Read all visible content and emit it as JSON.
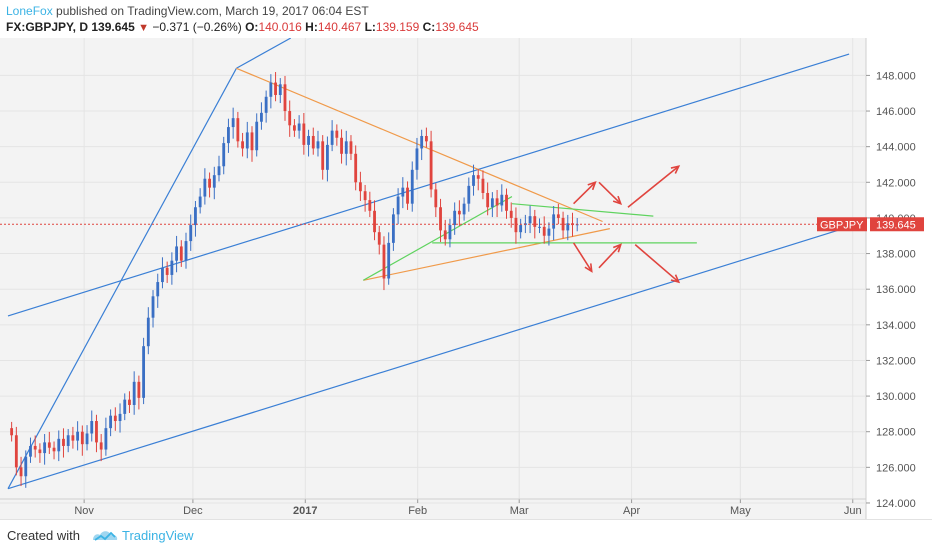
{
  "header": {
    "author": "LoneFox",
    "published": " published on TradingView.com, March 19, 2017 06:04 EST"
  },
  "ohlc": {
    "symbol": "FX:GBPJPY, D",
    "last": "139.645",
    "change": "−0.371 (−0.26%)",
    "o_label": "O:",
    "o": "140.016",
    "h_label": "H:",
    "h": "140.467",
    "l_label": "L:",
    "l": "139.159",
    "c_label": "C:",
    "c": "139.645"
  },
  "footer": {
    "created": "Created with",
    "brand": "TradingView"
  },
  "colors": {
    "up": "#3a6fc4",
    "down": "#e0443e",
    "channel": "#3a7fd5",
    "orange": "#f09a4a",
    "green": "#5fd35f",
    "arrows": "#e0443e",
    "price_line": "#e0443e",
    "plot_bg": "#f3f3f3"
  },
  "chart_data": {
    "type": "candlestick",
    "symbol": "GBPJPY",
    "last_price": 139.645,
    "price_label_text": "GBPJPY",
    "price_label_value": "139.645",
    "y_ticks": [
      "124.000",
      "126.000",
      "128.000",
      "130.000",
      "132.000",
      "134.000",
      "136.000",
      "138.000",
      "140.000",
      "142.000",
      "144.000",
      "146.000",
      "148.000"
    ],
    "x_ticks": [
      "Nov",
      "Dec",
      "2017",
      "Feb",
      "Mar",
      "Apr",
      "May",
      "Jun"
    ],
    "ylim": [
      123.1,
      150.1
    ],
    "x_range": [
      "2016-10-11",
      "2017-06-03"
    ],
    "candles_close": [
      127.8,
      126.0,
      125.5,
      126.6,
      127.2,
      127.0,
      126.8,
      127.4,
      127.1,
      126.9,
      127.6,
      127.2,
      127.8,
      127.5,
      128.0,
      127.3,
      127.9,
      128.6,
      127.4,
      127.0,
      128.2,
      128.9,
      128.6,
      129.0,
      129.8,
      129.5,
      130.8,
      129.9,
      132.8,
      134.4,
      135.6,
      136.4,
      137.2,
      136.8,
      137.6,
      138.4,
      137.6,
      138.7,
      139.6,
      140.6,
      141.2,
      142.2,
      141.7,
      142.4,
      142.9,
      144.2,
      145.1,
      145.6,
      144.3,
      143.9,
      144.8,
      143.8,
      145.4,
      145.9,
      146.8,
      147.6,
      146.9,
      147.5,
      146.0,
      145.2,
      144.9,
      145.3,
      144.1,
      144.6,
      143.9,
      144.3,
      142.7,
      144.1,
      144.9,
      144.5,
      143.6,
      144.3,
      143.6,
      142.0,
      141.5,
      141.0,
      140.4,
      139.2,
      138.5,
      136.6,
      138.6,
      140.2,
      141.2,
      141.7,
      140.8,
      142.7,
      143.9,
      144.6,
      144.3,
      141.6,
      140.6,
      139.3,
      138.8,
      139.6,
      140.4,
      140.2,
      140.8,
      141.8,
      142.4,
      142.2,
      141.4,
      140.6,
      141.1,
      140.7,
      141.3,
      140.4,
      140.0,
      139.2,
      139.6,
      139.7,
      140.1,
      139.5,
      139.5,
      139.0,
      139.4,
      140.2,
      140.0,
      139.3,
      139.7,
      139.6,
      139.645
    ],
    "drawings": {
      "channel_upper": [
        [
          "2016-10-11",
          134.5
        ],
        [
          "2017-05-31",
          149.2
        ]
      ],
      "channel_lower": [
        [
          "2016-10-11",
          124.8
        ],
        [
          "2017-05-31",
          139.5
        ]
      ],
      "rally_line": [
        [
          "2016-10-11",
          124.8
        ],
        [
          "2016-12-13",
          148.4
        ]
      ],
      "channel_top_segment": [
        [
          "2016-12-13",
          148.4
        ],
        [
          "2016-12-28",
          150.1
        ]
      ],
      "orange_resistance": [
        [
          "2016-12-13",
          148.4
        ],
        [
          "2017-03-24",
          139.8
        ]
      ],
      "orange_support": [
        [
          "2017-01-17",
          136.5
        ],
        [
          "2017-03-26",
          139.4
        ]
      ],
      "green_support": [
        [
          "2017-01-17",
          136.5
        ],
        [
          "2017-02-27",
          141.2
        ]
      ],
      "green_flag_top": [
        [
          "2017-02-27",
          140.8
        ],
        [
          "2017-04-07",
          140.1
        ]
      ],
      "green_flag_bottom": [
        [
          "2017-02-05",
          138.6
        ],
        [
          "2017-04-19",
          138.6
        ]
      ]
    }
  }
}
